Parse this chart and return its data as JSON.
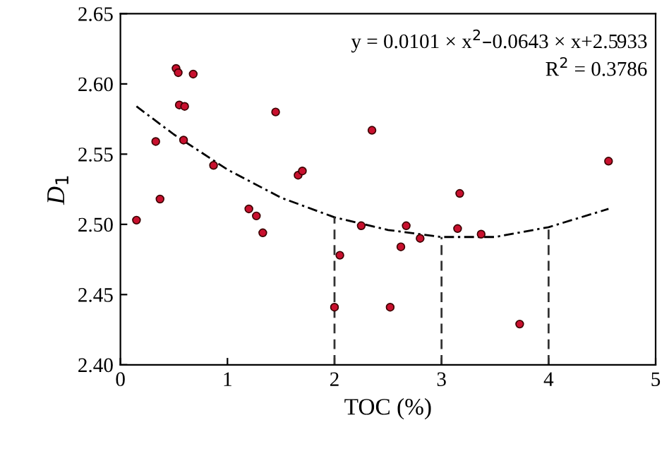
{
  "chart_data": {
    "type": "scatter",
    "xlabel": "TOC (%)",
    "ylabel": "D$_{1}$",
    "xlim": [
      0,
      5
    ],
    "ylim": [
      2.4,
      2.65
    ],
    "xticks": [
      0,
      1,
      2,
      3,
      4,
      5
    ],
    "yticks": [
      {
        "value": 2.4,
        "label": "2.40"
      },
      2.45,
      {
        "value": 2.5,
        "label": "2.50"
      },
      2.55,
      {
        "value": 2.6,
        "label": "2.60"
      },
      2.65
    ],
    "grid": false,
    "legend": false,
    "marker": "circle",
    "annotations": [
      "y = 0.0101 × x$^{2}$–0.0643 × x+2.5933",
      "R$^{2}$ = 0.3786"
    ],
    "ref_lines": [
      {
        "axis": "x",
        "value": 2,
        "label": null,
        "line_style": "dashed"
      },
      {
        "axis": "x",
        "value": 3,
        "label": null,
        "line_style": "dashed"
      },
      {
        "axis": "x",
        "value": 4,
        "label": null,
        "line_style": "dashed"
      }
    ],
    "series": [
      {
        "color": "#c8102e",
        "x": [
          0.15,
          0.33,
          0.37,
          0.52,
          0.54,
          0.55,
          0.6,
          0.59,
          0.68,
          0.87,
          1.2,
          1.27,
          1.33,
          1.45,
          1.66,
          1.7,
          2.0,
          2.05,
          2.25,
          2.35,
          2.52,
          2.62,
          2.67,
          2.8,
          3.15,
          3.17,
          3.37,
          3.73,
          4.56
        ],
        "values": [
          2.503,
          2.559,
          2.518,
          2.611,
          2.608,
          2.585,
          2.584,
          2.56,
          2.607,
          2.542,
          2.511,
          2.506,
          2.494,
          2.58,
          2.535,
          2.538,
          2.441,
          2.478,
          2.499,
          2.567,
          2.441,
          2.484,
          2.499,
          2.49,
          2.497,
          2.522,
          2.493,
          2.429,
          2.545
        ]
      },
      {
        "type": "line",
        "color": "#000000",
        "line_style": "dashdot",
        "marker": "none",
        "x": [
          0.15,
          0.5,
          1.0,
          1.5,
          2.0,
          2.5,
          3.0,
          3.5,
          4.0,
          4.56
        ],
        "values": [
          2.584,
          2.564,
          2.539,
          2.519,
          2.505,
          2.496,
          2.491,
          2.491,
          2.498,
          2.511
        ]
      }
    ]
  }
}
